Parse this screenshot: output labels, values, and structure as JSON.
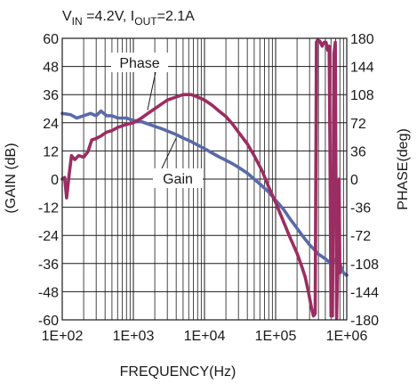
{
  "chart_data": {
    "type": "line",
    "title": {
      "v": "V",
      "v_sub": "IN",
      "v_val": " =4.2V, I",
      "i_sub": "OUT",
      "i_val": "=2.1A"
    },
    "xlabel": "FREQUENCY(Hz)",
    "ylabel_left": "(GAIN (dB)",
    "ylabel_right": "PHASE(deg)",
    "x_scale": "log",
    "xlim": [
      100,
      1000000
    ],
    "ylim_left": [
      -60,
      60
    ],
    "ylim_right": [
      -180,
      180
    ],
    "x_ticks": [
      100,
      1000,
      10000,
      100000,
      1000000
    ],
    "x_tick_labels": [
      "1E+02",
      "1E+03",
      "1E+04",
      "1E+05",
      "1E+06"
    ],
    "y_left_ticks": [
      60,
      48,
      36,
      24,
      12,
      0,
      -12,
      -24,
      -36,
      -48,
      -60
    ],
    "y_left_tick_labels": [
      "60",
      "48",
      "36",
      "24",
      "12",
      "0",
      "-12",
      "-24",
      "-36",
      "-48",
      "-60"
    ],
    "y_right_ticks": [
      180,
      144,
      108,
      72,
      36,
      0,
      -36,
      -72,
      -108,
      -144,
      -180
    ],
    "y_right_tick_labels": [
      "180",
      "144",
      "108",
      "72",
      "36",
      "0",
      "-36",
      "-72",
      "-108",
      "-144",
      "-180"
    ],
    "grid": true,
    "colors": {
      "gain": "#5a6aa8",
      "phase": "#9b2d62"
    },
    "annotations": [
      {
        "text": "Phase",
        "series": "phase",
        "at": [
          5000,
          111
        ]
      },
      {
        "text": "Gain",
        "series": "gain",
        "at": [
          12000,
          30
        ]
      }
    ],
    "series": [
      {
        "name": "Gain",
        "axis": "left",
        "points": [
          [
            100,
            28
          ],
          [
            130,
            27.5
          ],
          [
            160,
            26
          ],
          [
            200,
            27
          ],
          [
            250,
            28
          ],
          [
            300,
            27
          ],
          [
            350,
            29
          ],
          [
            420,
            27
          ],
          [
            500,
            27
          ],
          [
            600,
            26
          ],
          [
            800,
            26
          ],
          [
            1000,
            25
          ],
          [
            1300,
            24.5
          ],
          [
            1600,
            23.5
          ],
          [
            2000,
            22.5
          ],
          [
            2500,
            21.5
          ],
          [
            3000,
            20.5
          ],
          [
            4000,
            19
          ],
          [
            5000,
            17.5
          ],
          [
            6500,
            16
          ],
          [
            8000,
            14.5
          ],
          [
            10000,
            13
          ],
          [
            13000,
            11
          ],
          [
            16000,
            9.5
          ],
          [
            20000,
            8
          ],
          [
            25000,
            6.5
          ],
          [
            30000,
            5
          ],
          [
            40000,
            2.5
          ],
          [
            50000,
            0
          ],
          [
            65000,
            -3
          ],
          [
            80000,
            -5.5
          ],
          [
            100000,
            -9
          ],
          [
            130000,
            -13
          ],
          [
            160000,
            -17
          ],
          [
            200000,
            -21
          ],
          [
            250000,
            -25
          ],
          [
            300000,
            -28
          ],
          [
            400000,
            -32
          ],
          [
            500000,
            -34
          ],
          [
            600000,
            -36
          ],
          [
            700000,
            -34
          ],
          [
            800000,
            -36
          ],
          [
            900000,
            -40
          ],
          [
            1000000,
            -41
          ]
        ]
      },
      {
        "name": "Phase",
        "axis": "right",
        "points": [
          [
            100,
            0
          ],
          [
            108,
            2
          ],
          [
            115,
            -24
          ],
          [
            125,
            6
          ],
          [
            135,
            30
          ],
          [
            150,
            25
          ],
          [
            170,
            30
          ],
          [
            200,
            28
          ],
          [
            230,
            35
          ],
          [
            260,
            50
          ],
          [
            300,
            52
          ],
          [
            350,
            55
          ],
          [
            420,
            60
          ],
          [
            500,
            62
          ],
          [
            600,
            66
          ],
          [
            800,
            70
          ],
          [
            1000,
            72
          ],
          [
            1300,
            78
          ],
          [
            1600,
            84
          ],
          [
            2000,
            90
          ],
          [
            2500,
            96
          ],
          [
            3000,
            101
          ],
          [
            4000,
            105
          ],
          [
            5000,
            108
          ],
          [
            6500,
            108
          ],
          [
            8000,
            105
          ],
          [
            10000,
            101
          ],
          [
            13000,
            94
          ],
          [
            16000,
            87
          ],
          [
            20000,
            80
          ],
          [
            25000,
            70
          ],
          [
            30000,
            60
          ],
          [
            40000,
            45
          ],
          [
            50000,
            30
          ],
          [
            65000,
            10
          ],
          [
            80000,
            -10
          ],
          [
            100000,
            -30
          ],
          [
            130000,
            -55
          ],
          [
            160000,
            -75
          ],
          [
            200000,
            -95
          ],
          [
            230000,
            -110
          ],
          [
            260000,
            -125
          ],
          [
            290000,
            -145
          ],
          [
            320000,
            -165
          ],
          [
            340000,
            -175
          ],
          [
            360000,
            -172
          ],
          [
            375000,
            175
          ],
          [
            390000,
            178
          ],
          [
            420000,
            176
          ],
          [
            450000,
            170
          ],
          [
            480000,
            175
          ],
          [
            510000,
            175
          ],
          [
            540000,
            165
          ],
          [
            565000,
            170
          ],
          [
            580000,
            40
          ],
          [
            600000,
            -175
          ],
          [
            630000,
            -175
          ],
          [
            660000,
            160
          ],
          [
            690000,
            175
          ],
          [
            720000,
            -178
          ],
          [
            750000,
            -100
          ],
          [
            780000,
            0
          ],
          [
            800000,
            -120
          ]
        ]
      }
    ]
  }
}
